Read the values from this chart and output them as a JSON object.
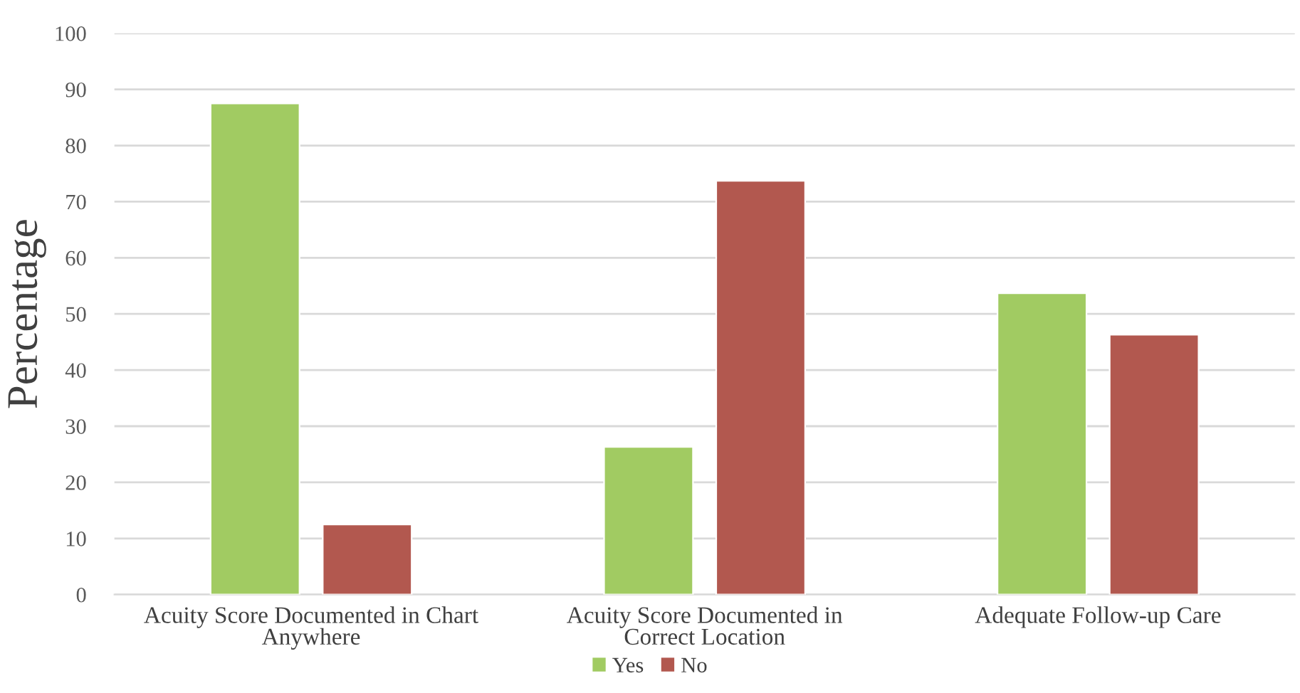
{
  "chart_data": {
    "type": "bar",
    "ylabel": "Percentage",
    "categories": [
      "Acuity Score Documented in Chart Anywhere",
      "Acuity Score Documented in Correct Location",
      "Adequate Follow-up Care"
    ],
    "series": [
      {
        "name": "Yes",
        "color": "#a1cb62",
        "values": [
          87.5,
          26.3,
          53.7
        ]
      },
      {
        "name": "No",
        "color": "#b2584f",
        "values": [
          12.5,
          73.7,
          46.3
        ]
      }
    ],
    "ylim": [
      0,
      100
    ],
    "yticks": [
      0,
      10,
      20,
      30,
      40,
      50,
      60,
      70,
      80,
      90,
      100
    ],
    "grid": "y",
    "legend": "bottom"
  }
}
